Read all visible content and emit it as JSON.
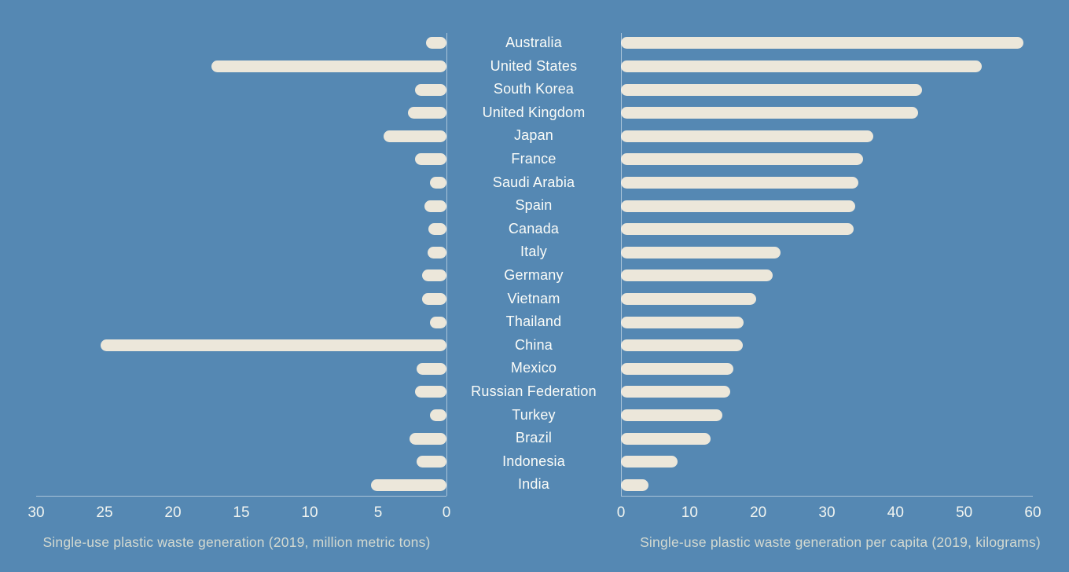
{
  "colors": {
    "background": "#5588b3",
    "bar": "#ece7da",
    "label": "#fbfcf8",
    "tick": "#f2f5f1",
    "axis_title": "#d3d9d0",
    "axis_line": "rgba(255,255,255,0.5)"
  },
  "chart_data": [
    {
      "type": "bar",
      "orientation": "horizontal",
      "side": "left",
      "title": "",
      "xlabel": "Single-use plastic waste generation (2019, million metric tons)",
      "ylabel": "",
      "axis": {
        "min": 0,
        "max": 30,
        "ticks": [
          30,
          25,
          20,
          15,
          10,
          5,
          0
        ],
        "reversed": true
      },
      "grid": false,
      "legend": false,
      "categories": [
        "Australia",
        "United States",
        "South Korea",
        "United Kingdom",
        "Japan",
        "France",
        "Saudi Arabia",
        "Spain",
        "Canada",
        "Italy",
        "Germany",
        "Vietnam",
        "Thailand",
        "China",
        "Mexico",
        "Russian Federation",
        "Turkey",
        "Brazil",
        "Indonesia",
        "India"
      ],
      "values": [
        1.5,
        17.2,
        2.3,
        2.8,
        4.6,
        2.3,
        1.2,
        1.6,
        1.3,
        1.4,
        1.8,
        1.8,
        1.2,
        25.3,
        2.2,
        2.3,
        1.2,
        2.7,
        2.2,
        5.5
      ]
    },
    {
      "type": "bar",
      "orientation": "horizontal",
      "side": "right",
      "title": "",
      "xlabel": "Single-use plastic waste generation per capita (2019, kilograms)",
      "ylabel": "",
      "axis": {
        "min": 0,
        "max": 60,
        "ticks": [
          0,
          10,
          20,
          30,
          40,
          50,
          60
        ],
        "reversed": false
      },
      "grid": false,
      "legend": false,
      "categories": [
        "Australia",
        "United States",
        "South Korea",
        "United Kingdom",
        "Japan",
        "France",
        "Saudi Arabia",
        "Spain",
        "Canada",
        "Italy",
        "Germany",
        "Vietnam",
        "Thailand",
        "China",
        "Mexico",
        "Russian Federation",
        "Turkey",
        "Brazil",
        "Indonesia",
        "India"
      ],
      "values": [
        58.6,
        52.5,
        43.8,
        43.3,
        36.8,
        35.3,
        34.6,
        34.1,
        33.9,
        23.3,
        22.1,
        19.7,
        17.9,
        17.8,
        16.4,
        15.9,
        14.8,
        13.1,
        8.3,
        4.0
      ]
    }
  ]
}
